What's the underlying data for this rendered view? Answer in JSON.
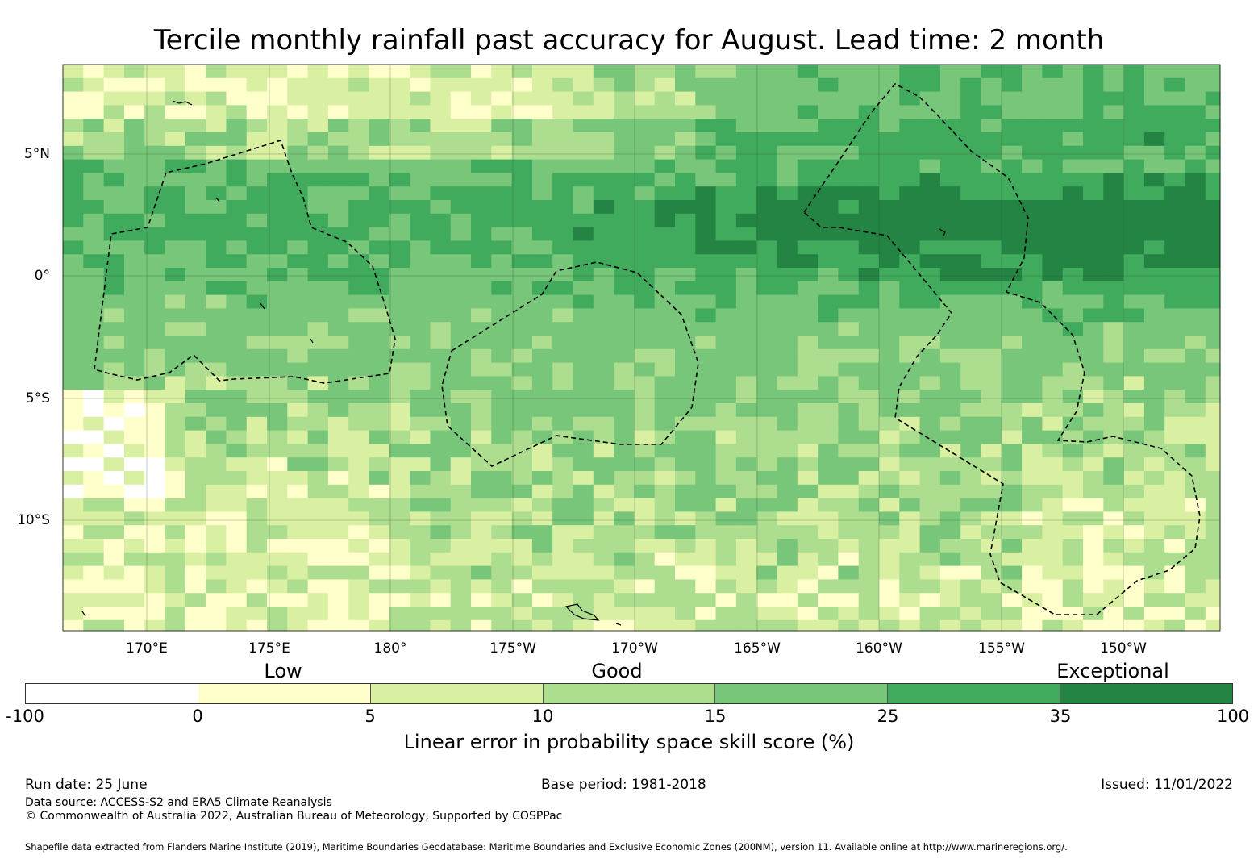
{
  "title": "Tercile monthly rainfall past accuracy for August. Lead time: 2 month",
  "map": {
    "lon_labels": [
      "170°E",
      "175°E",
      "180°",
      "175°W",
      "170°W",
      "165°W",
      "160°W",
      "155°W",
      "150°W"
    ],
    "lat_labels": [
      "5°N",
      "0°",
      "5°S",
      "10°S"
    ]
  },
  "colorbar": {
    "category_labels": [
      "Low",
      "Good",
      "Exceptional"
    ],
    "ticks": [
      "-100",
      "0",
      "5",
      "10",
      "15",
      "25",
      "35",
      "100"
    ],
    "colors": [
      "#ffffff",
      "#ffffcc",
      "#d9f0a3",
      "#addd8e",
      "#78c679",
      "#41ab5d",
      "#238443"
    ],
    "title": "Linear error in probability space skill score (%)"
  },
  "footer": {
    "run_date": "Run date: 25 June",
    "base_period": "Base period: 1981-2018",
    "issued": "Issued: 11/01/2022",
    "data_source": "Data source: ACCESS-S2 and ERA5 Climate Reanalysis",
    "copyright": "© Commonwealth of Australia 2022, Australian Bureau of Meteorology, Supported by COSPPac",
    "shapefile": "Shapefile data extracted from Flanders Marine Institute (2019), Maritime Boundaries Geodatabase: Maritime Boundaries and Exclusive Economic Zones (200NM), version 11. Available online at http://www.marineregions.org/."
  }
}
